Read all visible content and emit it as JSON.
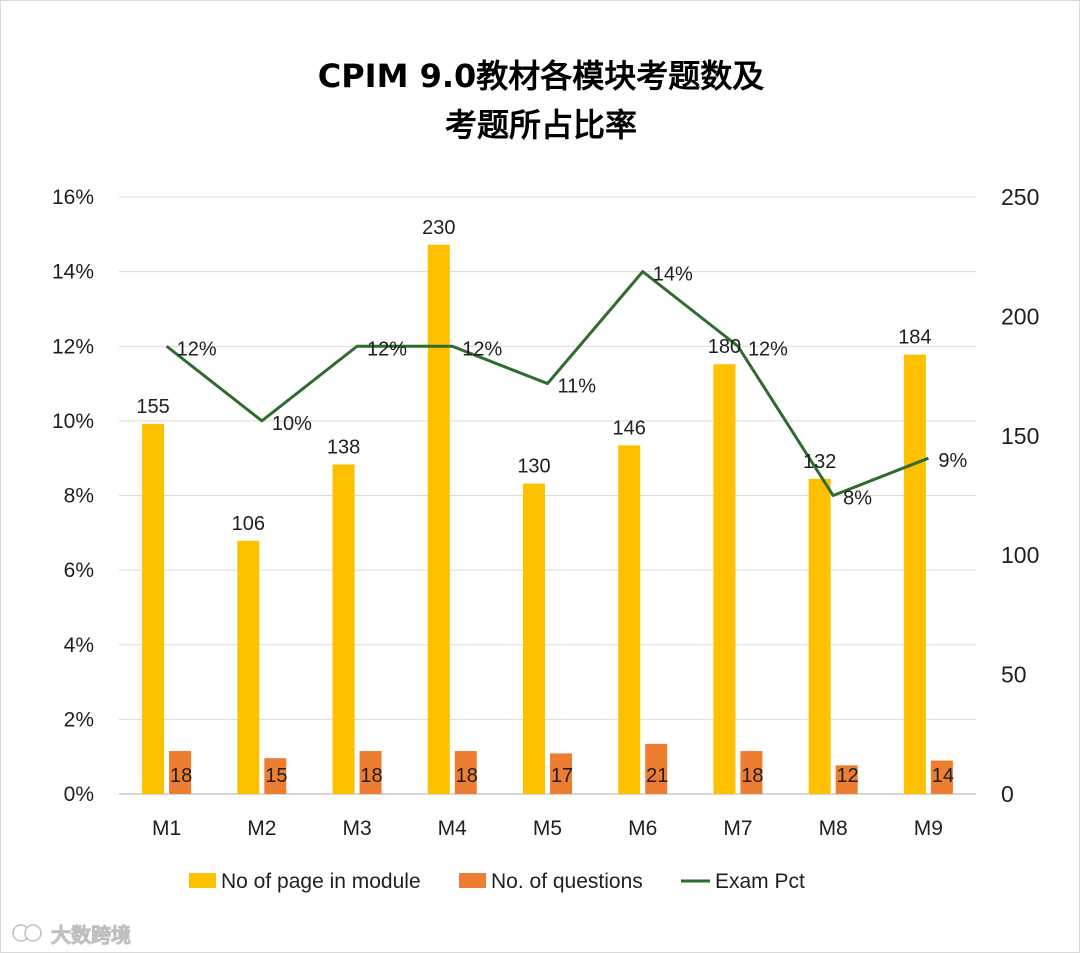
{
  "chart_data": {
    "type": "bar",
    "title": [
      "CPIM 9.0教材各模块考题数及",
      "考题所占比率"
    ],
    "categories": [
      "M1",
      "M2",
      "M3",
      "M4",
      "M5",
      "M6",
      "M7",
      "M8",
      "M9"
    ],
    "series": [
      {
        "name": "No of page in module",
        "type": "bar",
        "axis": "right",
        "color": "#FFC000",
        "values": [
          155,
          106,
          138,
          230,
          130,
          146,
          180,
          132,
          184
        ]
      },
      {
        "name": "No. of questions",
        "type": "bar",
        "axis": "right",
        "color": "#ED7D31",
        "values": [
          18,
          15,
          18,
          18,
          17,
          21,
          18,
          12,
          14
        ]
      },
      {
        "name": "Exam Pct",
        "type": "line",
        "axis": "left",
        "color": "#2E6B2E",
        "values": [
          0.12,
          0.1,
          0.12,
          0.12,
          0.11,
          0.14,
          0.12,
          0.08,
          0.09
        ],
        "labels": [
          "12%",
          "10%",
          "12%",
          "12%",
          "11%",
          "14%",
          "12%",
          "8%",
          "9%"
        ]
      }
    ],
    "y_left": {
      "ticks": [
        "0%",
        "2%",
        "4%",
        "6%",
        "8%",
        "10%",
        "12%",
        "14%",
        "16%"
      ],
      "ylim": [
        0,
        0.16
      ]
    },
    "y_right": {
      "ticks": [
        "0",
        "50",
        "100",
        "150",
        "200",
        "250"
      ],
      "ylim": [
        0,
        250
      ]
    },
    "grid": true,
    "legend": "bottom"
  },
  "watermark": "大数跨境"
}
